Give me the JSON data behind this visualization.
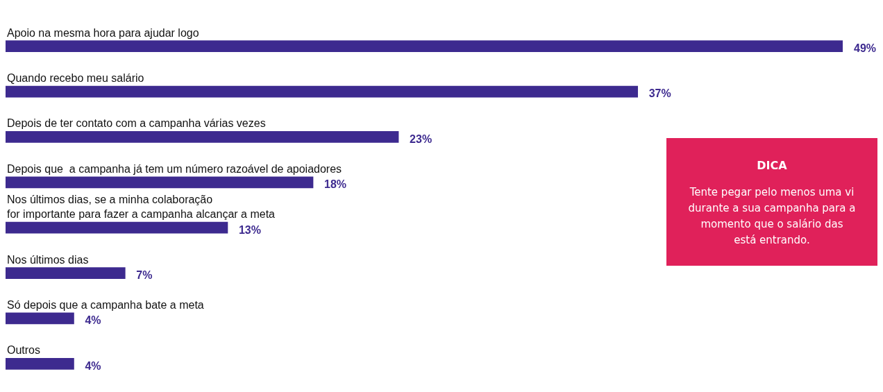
{
  "chart_data": {
    "type": "bar",
    "orientation": "horizontal",
    "categories": [
      "Apoio na mesma hora para ajudar logo",
      "Quando recebo meu salário",
      "Depois de ter contato com a campanha várias vezes",
      "Depois que  a campanha já tem um número razoável de apoiadores",
      "Nos últimos dias, se a minha colaboração\nfor importante para fazer a campanha alcançar a meta",
      "Nos últimos dias",
      "Só depois que a campanha bate a meta",
      "Outros"
    ],
    "values": [
      49,
      37,
      23,
      18,
      13,
      7,
      4,
      4
    ],
    "value_labels": [
      "49%",
      "37%",
      "23%",
      "18%",
      "13%",
      "7%",
      "4%",
      "4%"
    ],
    "color": "#3d2a8f",
    "annotations": [
      "DICA",
      "Tente pegar pelo menos uma vi\ndurante a sua campanha para a\nmomento que o salário das\nestá entrando."
    ]
  }
}
